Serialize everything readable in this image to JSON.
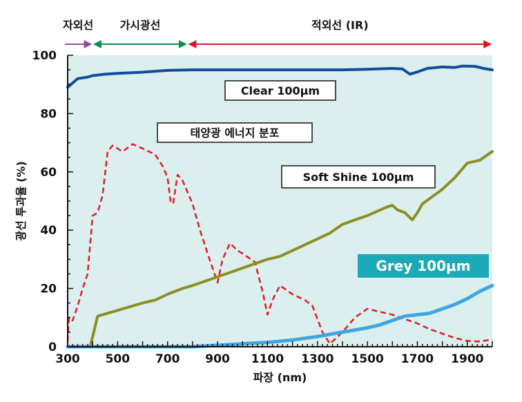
{
  "chart_data": {
    "type": "line",
    "xlabel": "파장 (nm)",
    "ylabel": "광선 투과율 (%)",
    "xlim": [
      300,
      2000
    ],
    "ylim": [
      0,
      100
    ],
    "x_ticks": [
      300,
      500,
      700,
      900,
      1100,
      1300,
      1500,
      1700,
      1900
    ],
    "y_ticks": [
      0,
      20,
      40,
      60,
      80,
      100
    ],
    "grid": false,
    "plot_background": "#dcefef",
    "bands": [
      {
        "label": "자외선",
        "from": 300,
        "to": 400,
        "color": "#8e4fa0"
      },
      {
        "label": "가시광선",
        "from": 400,
        "to": 780,
        "color": "#0a8f4c"
      },
      {
        "label": "적외선 (IR)",
        "from": 780,
        "to": 2000,
        "color": "#d7182a"
      }
    ],
    "series": [
      {
        "name": "Clear 100μm",
        "color": "#114c9c",
        "style": "solid",
        "points": [
          [
            300,
            89
          ],
          [
            320,
            90.5
          ],
          [
            340,
            92
          ],
          [
            380,
            92.5
          ],
          [
            400,
            93
          ],
          [
            450,
            93.5
          ],
          [
            500,
            93.8
          ],
          [
            600,
            94.2
          ],
          [
            700,
            94.8
          ],
          [
            800,
            95
          ],
          [
            1000,
            95
          ],
          [
            1200,
            95
          ],
          [
            1400,
            95
          ],
          [
            1500,
            95.2
          ],
          [
            1600,
            95.5
          ],
          [
            1640,
            95.3
          ],
          [
            1670,
            93.5
          ],
          [
            1700,
            94.3
          ],
          [
            1740,
            95.5
          ],
          [
            1800,
            96
          ],
          [
            1850,
            95.8
          ],
          [
            1880,
            96.3
          ],
          [
            1930,
            96.2
          ],
          [
            1970,
            95.4
          ],
          [
            2000,
            95
          ]
        ]
      },
      {
        "name": "태양광 에너지 분포",
        "color": "#e0202a",
        "style": "dashed",
        "points": [
          [
            300,
            2
          ],
          [
            305,
            10
          ],
          [
            320,
            9
          ],
          [
            340,
            14
          ],
          [
            360,
            20
          ],
          [
            380,
            25
          ],
          [
            400,
            45
          ],
          [
            420,
            46
          ],
          [
            440,
            52
          ],
          [
            460,
            67
          ],
          [
            480,
            69
          ],
          [
            520,
            67
          ],
          [
            560,
            69.5
          ],
          [
            600,
            68
          ],
          [
            650,
            66
          ],
          [
            680,
            62
          ],
          [
            700,
            58
          ],
          [
            712,
            50
          ],
          [
            722,
            49
          ],
          [
            740,
            59
          ],
          [
            760,
            57
          ],
          [
            800,
            49
          ],
          [
            830,
            40
          ],
          [
            860,
            32
          ],
          [
            900,
            22
          ],
          [
            920,
            30
          ],
          [
            950,
            35.5
          ],
          [
            980,
            33
          ],
          [
            1000,
            32
          ],
          [
            1050,
            29
          ],
          [
            1080,
            19
          ],
          [
            1100,
            11
          ],
          [
            1120,
            16
          ],
          [
            1150,
            21
          ],
          [
            1200,
            18
          ],
          [
            1250,
            16
          ],
          [
            1280,
            14
          ],
          [
            1320,
            5
          ],
          [
            1350,
            1
          ],
          [
            1400,
            5
          ],
          [
            1450,
            10
          ],
          [
            1500,
            13
          ],
          [
            1550,
            12
          ],
          [
            1600,
            11
          ],
          [
            1650,
            9.5
          ],
          [
            1700,
            8
          ],
          [
            1750,
            6
          ],
          [
            1800,
            4.5
          ],
          [
            1850,
            3
          ],
          [
            1900,
            2
          ],
          [
            1950,
            1.8
          ],
          [
            2000,
            2.5
          ]
        ]
      },
      {
        "name": "Soft Shine 100μm",
        "color": "#8a8f24",
        "style": "solid",
        "points": [
          [
            300,
            0
          ],
          [
            390,
            0
          ],
          [
            410,
            7
          ],
          [
            420,
            10.5
          ],
          [
            440,
            11
          ],
          [
            500,
            12.5
          ],
          [
            560,
            14
          ],
          [
            600,
            15
          ],
          [
            650,
            16
          ],
          [
            700,
            18
          ],
          [
            760,
            20
          ],
          [
            800,
            21
          ],
          [
            900,
            24
          ],
          [
            1000,
            27
          ],
          [
            1100,
            30
          ],
          [
            1150,
            31
          ],
          [
            1200,
            33
          ],
          [
            1300,
            37
          ],
          [
            1350,
            39
          ],
          [
            1400,
            42
          ],
          [
            1500,
            45
          ],
          [
            1580,
            48
          ],
          [
            1600,
            48.5
          ],
          [
            1620,
            47
          ],
          [
            1650,
            46
          ],
          [
            1680,
            43.5
          ],
          [
            1700,
            46
          ],
          [
            1720,
            49
          ],
          [
            1800,
            54
          ],
          [
            1850,
            58
          ],
          [
            1880,
            61
          ],
          [
            1900,
            63
          ],
          [
            1950,
            64
          ],
          [
            2000,
            67
          ]
        ]
      },
      {
        "name": "Grey 100μm",
        "color": "#3fa6df",
        "style": "solid",
        "points": [
          [
            300,
            0
          ],
          [
            800,
            0
          ],
          [
            900,
            0.5
          ],
          [
            1000,
            1
          ],
          [
            1100,
            1.5
          ],
          [
            1200,
            2.3
          ],
          [
            1300,
            3.5
          ],
          [
            1400,
            5
          ],
          [
            1500,
            6.5
          ],
          [
            1550,
            7.5
          ],
          [
            1600,
            9
          ],
          [
            1650,
            10.5
          ],
          [
            1700,
            11
          ],
          [
            1750,
            11.5
          ],
          [
            1800,
            13
          ],
          [
            1850,
            14.5
          ],
          [
            1900,
            16.5
          ],
          [
            1950,
            19
          ],
          [
            2000,
            21
          ]
        ]
      }
    ],
    "annotations": [
      {
        "text": "Clear 100μm",
        "series": "Clear 100μm"
      },
      {
        "text": "태양광 에너지 분포",
        "series": "태양광 에너지 분포"
      },
      {
        "text": "Soft Shine 100μm",
        "series": "Soft Shine 100μm"
      },
      {
        "text": "Grey 100μm",
        "series": "Grey 100μm",
        "fill": "#1aa9b6"
      }
    ]
  }
}
